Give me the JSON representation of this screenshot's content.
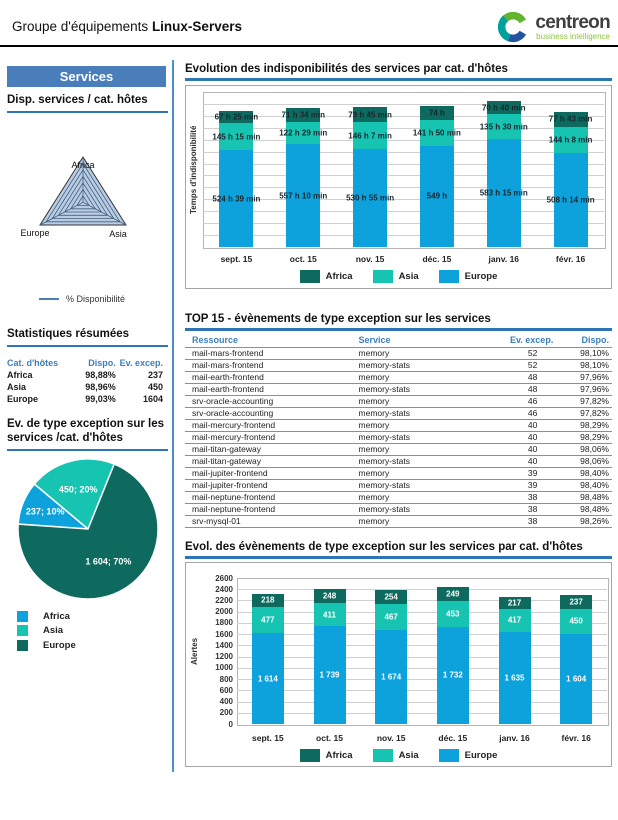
{
  "header": {
    "group_label": "Groupe d'équipements",
    "group_name": "Linux-Servers",
    "logo_text": "centreon",
    "logo_subtitle": "business intelligence"
  },
  "colors": {
    "accent_blue": "#4a7ebb",
    "underline_blue": "#2e75b6",
    "europe_bar_blue": "#0ea2dc",
    "asia_teal": "#17c4b1",
    "africa_dark_teal": "#0e6a5e",
    "logo_green": "#8cc63e",
    "table_line_blue": "#5b9bd5",
    "radar_fill": "#b9cce4"
  },
  "sidebar": {
    "banner": "Services",
    "radar": {
      "title": "Disp. services / cat. hôtes",
      "legend_label": "% Disponibilité"
    },
    "stats": {
      "title": "Statistiques résumées",
      "headers": [
        "Cat. d'hôtes",
        "Dispo.",
        "Ev. excep."
      ],
      "rows": [
        [
          "Africa",
          "98,88%",
          "237"
        ],
        [
          "Asia",
          "98,96%",
          "450"
        ],
        [
          "Europe",
          "99,03%",
          "1604"
        ]
      ]
    },
    "pie": {
      "title_line1": "Ev. de type exception sur les",
      "title_line2": "services /cat. d'hôtes",
      "legend": [
        "Africa",
        "Asia",
        "Europe"
      ]
    }
  },
  "main": {
    "top15": {
      "title": "TOP 15 - évènements de type exception sur les services",
      "headers": [
        "Ressource",
        "Service",
        "Ev. excep.",
        "Dispo."
      ],
      "rows": [
        [
          "mail-mars-frontend",
          "memory",
          "52",
          "98,10%"
        ],
        [
          "mail-mars-frontend",
          "memory-stats",
          "52",
          "98,10%"
        ],
        [
          "mail-earth-frontend",
          "memory",
          "48",
          "97,96%"
        ],
        [
          "mail-earth-frontend",
          "memory-stats",
          "48",
          "97,96%"
        ],
        [
          "srv-oracle-accounting",
          "memory",
          "46",
          "97,82%"
        ],
        [
          "srv-oracle-accounting",
          "memory-stats",
          "46",
          "97,82%"
        ],
        [
          "mail-mercury-frontend",
          "memory",
          "40",
          "98,29%"
        ],
        [
          "mail-mercury-frontend",
          "memory-stats",
          "40",
          "98,29%"
        ],
        [
          "mail-titan-gateway",
          "memory",
          "40",
          "98,06%"
        ],
        [
          "mail-titan-gateway",
          "memory-stats",
          "40",
          "98,06%"
        ],
        [
          "mail-jupiter-frontend",
          "memory",
          "39",
          "98,40%"
        ],
        [
          "mail-jupiter-frontend",
          "memory-stats",
          "39",
          "98,40%"
        ],
        [
          "mail-neptune-frontend",
          "memory",
          "38",
          "98,48%"
        ],
        [
          "mail-neptune-frontend",
          "memory-stats",
          "38",
          "98,48%"
        ],
        [
          "srv-mysql-01",
          "memory",
          "38",
          "98,26%"
        ]
      ]
    }
  },
  "chart_data": [
    {
      "type": "radar",
      "title": "Disp. services / cat. hôtes",
      "categories": [
        "Africa",
        "Asia",
        "Europe"
      ],
      "series": [
        {
          "name": "% Disponibilité",
          "values": [
            98.88,
            98.96,
            99.03
          ]
        }
      ],
      "levels": 7
    },
    {
      "type": "bar",
      "stacked": true,
      "title": "Evolution des indisponibilités des services par cat. d'hôtes",
      "xlabel": "",
      "ylabel": "Temps d'indisponibilité",
      "ylim": [
        0,
        840
      ],
      "grid": true,
      "legend_position": "bottom",
      "categories": [
        "sept. 15",
        "oct. 15",
        "nov. 15",
        "déc. 15",
        "janv. 16",
        "févr. 16"
      ],
      "series": [
        {
          "name": "Africa",
          "color": "#0e6a5e",
          "unit": "hours",
          "values": [
            67.42,
            71.57,
            79.75,
            74,
            70.67,
            77.72
          ],
          "labels": [
            "67 h 25 min",
            "71 h 34 min",
            "79 h 45 min",
            "74 h",
            "70 h 40 min",
            "77 h 43 min"
          ]
        },
        {
          "name": "Asia",
          "color": "#17c4b1",
          "unit": "hours",
          "values": [
            145.25,
            122.48,
            146.12,
            141.83,
            135.5,
            144.13
          ],
          "labels": [
            "145 h 15 min",
            "122 h 29 min",
            "146 h 7 min",
            "141 h 50 min",
            "135 h 30 min",
            "144 h 8 min"
          ]
        },
        {
          "name": "Europe",
          "color": "#0ea2dc",
          "unit": "hours",
          "values": [
            524.65,
            557.17,
            530.92,
            549,
            583.25,
            508.23
          ],
          "labels": [
            "524 h 39 min",
            "557 h 10 min",
            "530 h 55 min",
            "549 h",
            "583 h 15 min",
            "508 h 14 min"
          ]
        }
      ]
    },
    {
      "type": "pie",
      "title": "Ev. de type exception sur les services /cat. d'hôtes",
      "slices": [
        {
          "label": "Africa",
          "value": 237,
          "pct": 10,
          "display": "237; 10%",
          "color": "#0ea2dc"
        },
        {
          "label": "Asia",
          "value": 450,
          "pct": 20,
          "display": "450; 20%",
          "color": "#17c4b1"
        },
        {
          "label": "Europe",
          "value": 1604,
          "pct": 70,
          "display": "1 604; 70%",
          "color": "#0e6a5e"
        }
      ]
    },
    {
      "type": "bar",
      "stacked": true,
      "title": "Evol. des évènements de type exception sur les services par cat. d'hôtes",
      "xlabel": "",
      "ylabel": "Alertes",
      "ylim": [
        0,
        2600
      ],
      "ytick_step": 200,
      "grid": true,
      "legend_position": "bottom",
      "categories": [
        "sept. 15",
        "oct. 15",
        "nov. 15",
        "déc. 15",
        "janv. 16",
        "févr. 16"
      ],
      "series": [
        {
          "name": "Africa",
          "color": "#0e6a5e",
          "values": [
            218,
            248,
            254,
            249,
            217,
            237
          ],
          "labels": [
            "218",
            "248",
            "254",
            "249",
            "217",
            "237"
          ]
        },
        {
          "name": "Asia",
          "color": "#17c4b1",
          "values": [
            477,
            411,
            467,
            453,
            417,
            450
          ],
          "labels": [
            "477",
            "411",
            "467",
            "453",
            "417",
            "450"
          ]
        },
        {
          "name": "Europe",
          "color": "#0ea2dc",
          "values": [
            1614,
            1739,
            1674,
            1732,
            1635,
            1604
          ],
          "labels": [
            "1 614",
            "1 739",
            "1 674",
            "1 732",
            "1 635",
            "1 604"
          ]
        }
      ]
    }
  ]
}
